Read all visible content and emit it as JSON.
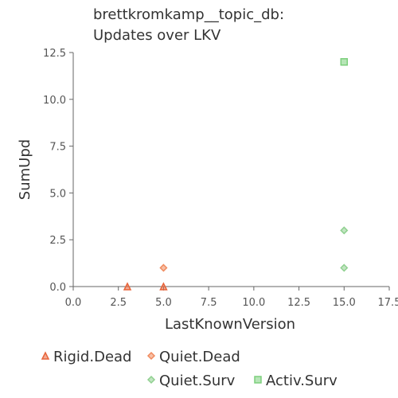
{
  "chart_data": {
    "type": "scatter",
    "title_lines": [
      "brettkromkamp__topic_db:",
      "Updates over LKV"
    ],
    "xlabel": "LastKnownVersion",
    "ylabel": "SumUpd",
    "xlim": [
      0,
      17.5
    ],
    "ylim": [
      0,
      12.5
    ],
    "x_ticks": [
      "0.0",
      "2.5",
      "5.0",
      "7.5",
      "10.0",
      "12.5",
      "15.0",
      "17.5"
    ],
    "y_ticks": [
      "0.0",
      "2.5",
      "5.0",
      "7.5",
      "10.0",
      "12.5"
    ],
    "grid": false,
    "legend_position": "bottom",
    "series": [
      {
        "name": "Rigid.Dead",
        "marker": "triangle",
        "color": "#e8643a",
        "points": [
          {
            "x": 3,
            "y": 0
          },
          {
            "x": 5,
            "y": 0
          }
        ]
      },
      {
        "name": "Quiet.Dead",
        "marker": "diamond",
        "color": "#f08a5d",
        "points": [
          {
            "x": 5,
            "y": 1
          }
        ]
      },
      {
        "name": "Quiet.Surv",
        "marker": "diamond",
        "color": "#8fd08f",
        "points": [
          {
            "x": 15,
            "y": 1
          },
          {
            "x": 15,
            "y": 3
          }
        ]
      },
      {
        "name": "Activ.Surv",
        "marker": "square",
        "color": "#7ccf7c",
        "points": [
          {
            "x": 15,
            "y": 12
          }
        ]
      }
    ]
  }
}
